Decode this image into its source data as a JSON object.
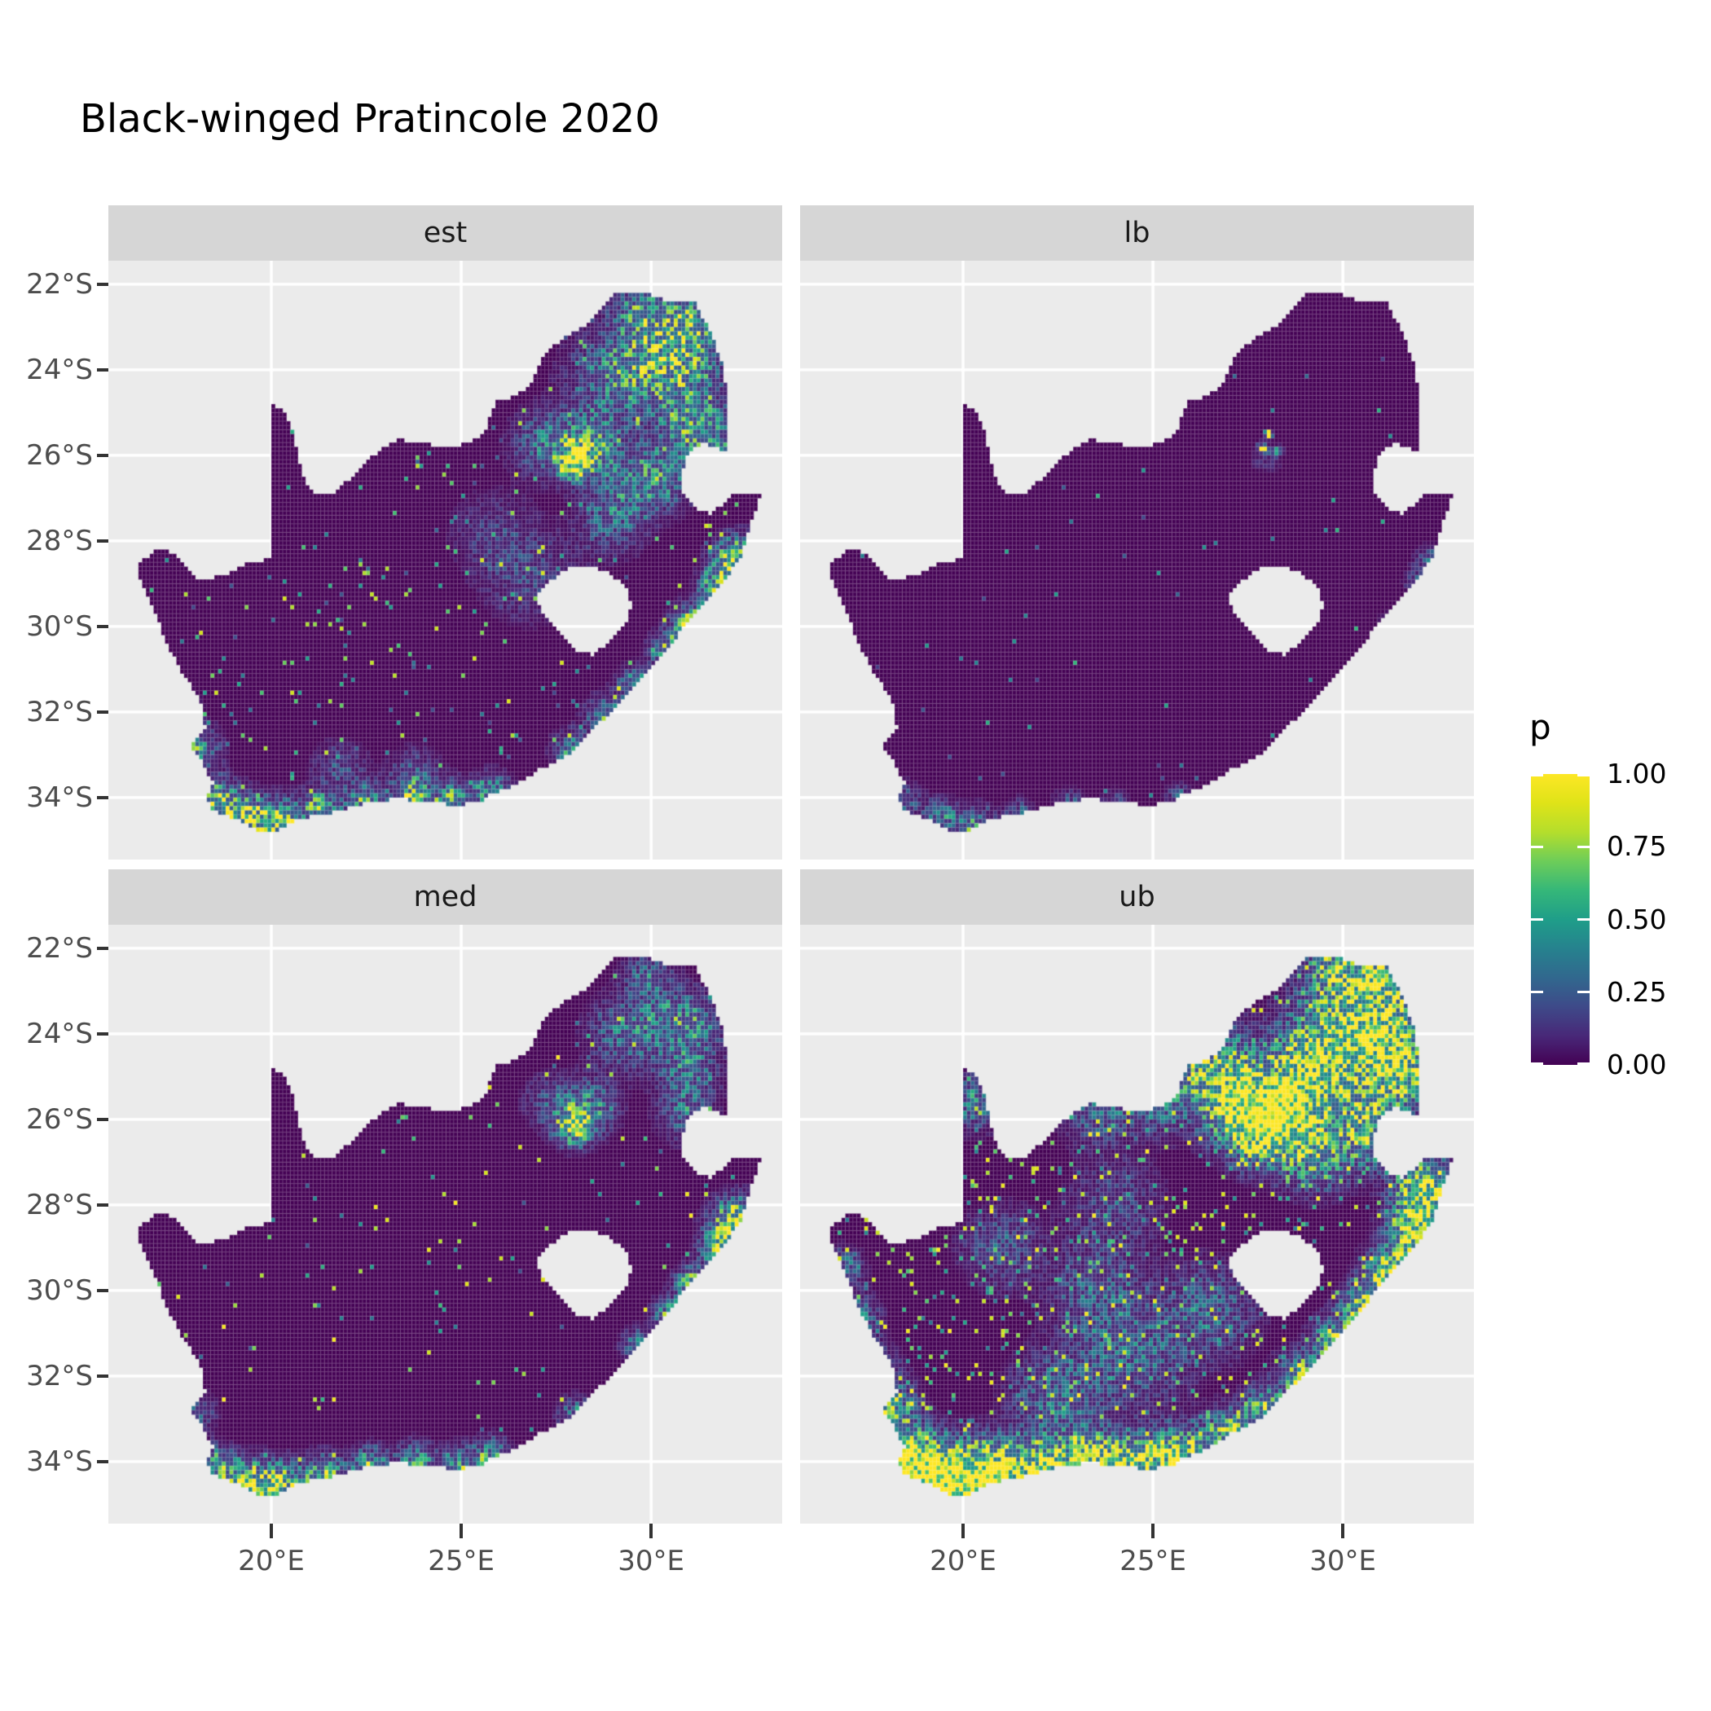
{
  "title": "Black-winged Pratincole 2020",
  "legend": {
    "title": "p",
    "breaks": [
      {
        "value": 1.0,
        "label": "1.00"
      },
      {
        "value": 0.75,
        "label": "0.75"
      },
      {
        "value": 0.5,
        "label": "0.50"
      },
      {
        "value": 0.25,
        "label": "0.25"
      },
      {
        "value": 0.0,
        "label": "0.00"
      }
    ]
  },
  "axes": {
    "x": {
      "ticks": [
        {
          "value": 20,
          "label": "20°E"
        },
        {
          "value": 25,
          "label": "25°E"
        },
        {
          "value": 30,
          "label": "30°E"
        }
      ]
    },
    "y": {
      "ticks": [
        {
          "value": -22,
          "label": "22°S"
        },
        {
          "value": -24,
          "label": "24°S"
        },
        {
          "value": -26,
          "label": "26°S"
        },
        {
          "value": -28,
          "label": "28°S"
        },
        {
          "value": -30,
          "label": "30°S"
        },
        {
          "value": -32,
          "label": "32°S"
        },
        {
          "value": -34,
          "label": "34°S"
        }
      ]
    }
  },
  "colors": {
    "background": "#ffffff",
    "panel_bg": "#ebebeb",
    "strip_bg": "#d6d6d6",
    "gridline": "#ffffff",
    "tick_mark": "#333333",
    "axis_text": "#4d4d4d",
    "strip_text": "#1a1a1a",
    "title_text": "#000000",
    "raster_base": "#440154",
    "raster_top": "#fde725"
  },
  "chart_data": {
    "type": "heatmap",
    "subtype": "faceted geographic raster (occurrence probability over South Africa pentad grid)",
    "title": "Black-winged Pratincole 2020",
    "facet_labels": [
      "est",
      "lb",
      "med",
      "ub"
    ],
    "legend_title": "p",
    "legend_breaks": [
      0,
      0.25,
      0.5,
      0.75,
      1
    ],
    "x_tick_labels": [
      "20°E",
      "25°E",
      "30°E"
    ],
    "y_tick_labels": [
      "22°S",
      "24°S",
      "26°S",
      "28°S",
      "30°S",
      "32°S",
      "34°S"
    ],
    "lon_range": [
      15.71,
      33.45
    ],
    "lat_range_south": [
      21.45,
      35.45
    ],
    "cell_size_deg": 0.1,
    "grid": {
      "lon0": 16.3,
      "lat0": 22.0,
      "cols": 168,
      "rows": 130
    },
    "viridis_stops": [
      [
        0.0,
        "#440154"
      ],
      [
        0.1,
        "#482878"
      ],
      [
        0.2,
        "#3e4a89"
      ],
      [
        0.3,
        "#31688e"
      ],
      [
        0.4,
        "#26828e"
      ],
      [
        0.5,
        "#1f9e89"
      ],
      [
        0.6,
        "#35b779"
      ],
      [
        0.7,
        "#6dcd59"
      ],
      [
        0.8,
        "#b4de2c"
      ],
      [
        0.9,
        "#dfe318"
      ],
      [
        1.0,
        "#fde725"
      ]
    ],
    "south_africa_outline": [
      [
        16.45,
        -28.6
      ],
      [
        16.95,
        -28.2
      ],
      [
        17.35,
        -28.25
      ],
      [
        17.65,
        -28.52
      ],
      [
        18.05,
        -28.87
      ],
      [
        18.75,
        -28.84
      ],
      [
        19.35,
        -28.52
      ],
      [
        19.99,
        -28.42
      ],
      [
        19.99,
        -24.77
      ],
      [
        20.38,
        -25.03
      ],
      [
        20.6,
        -25.45
      ],
      [
        20.68,
        -26.0
      ],
      [
        20.9,
        -26.6
      ],
      [
        21.15,
        -26.87
      ],
      [
        21.7,
        -26.85
      ],
      [
        22.25,
        -26.38
      ],
      [
        22.7,
        -26.0
      ],
      [
        23.3,
        -25.62
      ],
      [
        24.0,
        -25.73
      ],
      [
        24.75,
        -25.82
      ],
      [
        25.35,
        -25.62
      ],
      [
        25.62,
        -25.48
      ],
      [
        25.9,
        -24.75
      ],
      [
        26.45,
        -24.62
      ],
      [
        26.9,
        -24.25
      ],
      [
        27.2,
        -23.62
      ],
      [
        27.75,
        -23.22
      ],
      [
        28.35,
        -22.95
      ],
      [
        29.05,
        -22.22
      ],
      [
        29.7,
        -22.15
      ],
      [
        30.35,
        -22.35
      ],
      [
        31.1,
        -22.35
      ],
      [
        31.55,
        -23.1
      ],
      [
        31.9,
        -23.95
      ],
      [
        32.0,
        -24.7
      ],
      [
        31.95,
        -25.3
      ],
      [
        32.05,
        -25.65
      ],
      [
        31.95,
        -25.9
      ],
      [
        31.35,
        -25.72
      ],
      [
        30.98,
        -25.95
      ],
      [
        30.8,
        -26.4
      ],
      [
        30.82,
        -26.85
      ],
      [
        31.1,
        -27.2
      ],
      [
        31.55,
        -27.37
      ],
      [
        31.97,
        -27.1
      ],
      [
        32.13,
        -26.85
      ],
      [
        32.89,
        -26.85
      ],
      [
        32.58,
        -27.75
      ],
      [
        32.38,
        -28.32
      ],
      [
        32.0,
        -28.85
      ],
      [
        31.4,
        -29.45
      ],
      [
        30.75,
        -30.15
      ],
      [
        30.1,
        -30.85
      ],
      [
        29.45,
        -31.55
      ],
      [
        28.65,
        -32.25
      ],
      [
        27.9,
        -32.95
      ],
      [
        27.1,
        -33.32
      ],
      [
        26.4,
        -33.72
      ],
      [
        25.68,
        -33.95
      ],
      [
        25.62,
        -34.08
      ],
      [
        24.85,
        -34.18
      ],
      [
        23.95,
        -34.08
      ],
      [
        23.25,
        -34.02
      ],
      [
        22.4,
        -34.15
      ],
      [
        21.5,
        -34.38
      ],
      [
        20.75,
        -34.48
      ],
      [
        20.0,
        -34.82
      ],
      [
        19.6,
        -34.78
      ],
      [
        19.3,
        -34.58
      ],
      [
        18.85,
        -34.42
      ],
      [
        18.45,
        -34.32
      ],
      [
        18.3,
        -34.02
      ],
      [
        18.48,
        -33.68
      ],
      [
        18.18,
        -33.18
      ],
      [
        17.88,
        -32.75
      ],
      [
        18.28,
        -32.42
      ],
      [
        18.15,
        -31.75
      ],
      [
        17.6,
        -31.0
      ],
      [
        17.22,
        -30.32
      ],
      [
        16.9,
        -29.6
      ],
      [
        16.58,
        -28.98
      ]
    ],
    "lesotho_hole": [
      [
        26.98,
        -29.28
      ],
      [
        27.35,
        -28.92
      ],
      [
        27.78,
        -28.65
      ],
      [
        28.4,
        -28.6
      ],
      [
        28.92,
        -28.76
      ],
      [
        29.32,
        -29.06
      ],
      [
        29.48,
        -29.46
      ],
      [
        29.33,
        -29.92
      ],
      [
        28.95,
        -30.32
      ],
      [
        28.45,
        -30.66
      ],
      [
        28.05,
        -30.57
      ],
      [
        27.7,
        -30.3
      ],
      [
        27.36,
        -29.86
      ],
      [
        27.06,
        -29.57
      ]
    ],
    "facets": [
      {
        "label": "est",
        "seed": 11,
        "speckle": {
          "prob": 0.025,
          "min": 0.15,
          "max": 0.9
        },
        "hotspots": [
          [
            28.0,
            -26.15,
            0.25,
            1.35
          ],
          [
            28.4,
            -25.72,
            0.45,
            0.55
          ],
          [
            27.25,
            -25.72,
            0.5,
            0.35
          ],
          [
            29.1,
            -24.2,
            0.7,
            0.4
          ],
          [
            30.2,
            -23.6,
            0.65,
            0.45
          ],
          [
            31.2,
            -23.55,
            0.55,
            0.4
          ],
          [
            29.8,
            -22.6,
            0.45,
            0.45
          ],
          [
            31.0,
            -22.75,
            0.4,
            0.45
          ],
          [
            30.9,
            -24.9,
            0.55,
            0.45
          ],
          [
            31.4,
            -25.6,
            0.45,
            0.4
          ],
          [
            29.5,
            -26.7,
            0.55,
            0.35
          ],
          [
            30.4,
            -26.4,
            0.5,
            0.35
          ],
          [
            28.9,
            -27.6,
            0.5,
            0.25
          ],
          [
            32.3,
            -28.45,
            0.35,
            0.95
          ],
          [
            31.85,
            -29.1,
            0.3,
            0.85
          ],
          [
            31.1,
            -29.95,
            0.3,
            0.8
          ],
          [
            30.5,
            -30.6,
            0.28,
            0.7
          ],
          [
            29.6,
            -31.4,
            0.28,
            0.55
          ],
          [
            28.8,
            -32.1,
            0.28,
            0.5
          ],
          [
            27.95,
            -32.9,
            0.28,
            0.5
          ],
          [
            25.8,
            -33.9,
            0.28,
            0.65
          ],
          [
            24.8,
            -34.1,
            0.28,
            0.65
          ],
          [
            23.7,
            -34.0,
            0.28,
            0.6
          ],
          [
            22.5,
            -34.1,
            0.28,
            0.6
          ],
          [
            21.3,
            -34.3,
            0.3,
            0.7
          ],
          [
            20.2,
            -34.6,
            0.33,
            0.95
          ],
          [
            19.3,
            -34.45,
            0.33,
            0.9
          ],
          [
            18.5,
            -34.1,
            0.33,
            0.8
          ],
          [
            18.0,
            -32.9,
            0.35,
            0.5
          ],
          [
            17.6,
            -31.9,
            0.28,
            0.3
          ],
          [
            26.8,
            -28.8,
            0.7,
            0.18
          ],
          [
            25.8,
            -27.8,
            0.6,
            0.15
          ],
          [
            23.8,
            -33.5,
            0.4,
            0.25
          ],
          [
            21.8,
            -33.3,
            0.4,
            0.2
          ]
        ]
      },
      {
        "label": "lb",
        "seed": 22,
        "speckle": {
          "prob": 0.005,
          "min": 0.15,
          "max": 0.6
        },
        "hotspots": [
          [
            28.05,
            -25.5,
            0.06,
            1.2
          ],
          [
            28.3,
            -25.9,
            0.06,
            1.1
          ],
          [
            27.9,
            -25.85,
            0.08,
            0.7
          ],
          [
            28.0,
            -26.05,
            0.22,
            0.15
          ],
          [
            32.3,
            -28.45,
            0.22,
            0.3
          ],
          [
            31.95,
            -28.95,
            0.18,
            0.25
          ],
          [
            31.2,
            -29.9,
            0.15,
            0.2
          ],
          [
            20.3,
            -34.7,
            0.3,
            0.5
          ],
          [
            19.4,
            -34.5,
            0.28,
            0.45
          ],
          [
            21.5,
            -34.4,
            0.22,
            0.3
          ],
          [
            22.8,
            -34.15,
            0.22,
            0.28
          ],
          [
            24.0,
            -34.12,
            0.2,
            0.22
          ],
          [
            25.7,
            -34.0,
            0.2,
            0.28
          ],
          [
            18.45,
            -34.05,
            0.25,
            0.3
          ]
        ]
      },
      {
        "label": "med",
        "seed": 33,
        "speckle": {
          "prob": 0.014,
          "min": 0.2,
          "max": 1.0
        },
        "hotspots": [
          [
            28.0,
            -26.15,
            0.28,
            1.05
          ],
          [
            28.4,
            -25.7,
            0.4,
            0.4
          ],
          [
            27.4,
            -25.6,
            0.4,
            0.25
          ],
          [
            29.3,
            -24.0,
            0.55,
            0.3
          ],
          [
            30.4,
            -23.7,
            0.55,
            0.32
          ],
          [
            31.2,
            -23.8,
            0.45,
            0.3
          ],
          [
            31.0,
            -24.9,
            0.45,
            0.35
          ],
          [
            30.9,
            -25.9,
            0.4,
            0.3
          ],
          [
            29.9,
            -22.6,
            0.35,
            0.3
          ],
          [
            32.3,
            -28.45,
            0.38,
            1.05
          ],
          [
            31.9,
            -29.0,
            0.3,
            0.85
          ],
          [
            31.15,
            -29.9,
            0.28,
            0.75
          ],
          [
            30.5,
            -30.6,
            0.25,
            0.6
          ],
          [
            29.7,
            -31.3,
            0.25,
            0.5
          ],
          [
            28.0,
            -32.9,
            0.25,
            0.4
          ],
          [
            25.8,
            -33.92,
            0.28,
            0.62
          ],
          [
            24.9,
            -34.1,
            0.28,
            0.6
          ],
          [
            23.8,
            -34.02,
            0.28,
            0.62
          ],
          [
            22.6,
            -34.12,
            0.28,
            0.65
          ],
          [
            21.4,
            -34.32,
            0.3,
            0.72
          ],
          [
            20.2,
            -34.6,
            0.36,
            1.0
          ],
          [
            19.3,
            -34.45,
            0.33,
            0.8
          ],
          [
            18.5,
            -34.12,
            0.3,
            0.6
          ],
          [
            18.0,
            -32.85,
            0.28,
            0.35
          ]
        ]
      },
      {
        "label": "ub",
        "seed": 44,
        "speckle": {
          "prob": 0.075,
          "min": 0.3,
          "max": 1.0
        },
        "hotspots": [
          [
            28.0,
            -26.1,
            0.55,
            1.7
          ],
          [
            27.2,
            -25.5,
            0.6,
            0.85
          ],
          [
            28.9,
            -25.3,
            0.65,
            0.95
          ],
          [
            29.8,
            -24.3,
            0.75,
            0.85
          ],
          [
            31.0,
            -23.6,
            0.75,
            0.85
          ],
          [
            31.5,
            -24.8,
            0.55,
            0.85
          ],
          [
            30.8,
            -26.2,
            0.55,
            0.75
          ],
          [
            29.3,
            -26.8,
            0.55,
            0.55
          ],
          [
            26.5,
            -24.7,
            0.65,
            0.55
          ],
          [
            25.0,
            -25.4,
            0.55,
            0.45
          ],
          [
            29.9,
            -22.5,
            0.5,
            0.7
          ],
          [
            31.2,
            -22.6,
            0.4,
            0.6
          ],
          [
            32.2,
            -27.6,
            0.45,
            1.1
          ],
          [
            32.0,
            -28.6,
            0.42,
            1.25
          ],
          [
            31.3,
            -29.6,
            0.38,
            1.05
          ],
          [
            30.6,
            -30.4,
            0.35,
            0.95
          ],
          [
            29.8,
            -31.2,
            0.33,
            0.85
          ],
          [
            28.9,
            -32.0,
            0.33,
            0.85
          ],
          [
            28.0,
            -32.8,
            0.33,
            0.85
          ],
          [
            27.0,
            -33.3,
            0.33,
            0.85
          ],
          [
            25.7,
            -33.9,
            0.42,
            1.05
          ],
          [
            24.6,
            -34.05,
            0.42,
            1.05
          ],
          [
            23.4,
            -34.0,
            0.42,
            1.05
          ],
          [
            22.2,
            -34.15,
            0.42,
            1.05
          ],
          [
            21.0,
            -34.3,
            0.48,
            1.25
          ],
          [
            19.9,
            -34.5,
            0.55,
            1.5
          ],
          [
            19.0,
            -34.25,
            0.48,
            1.25
          ],
          [
            18.3,
            -33.8,
            0.42,
            1.0
          ],
          [
            17.9,
            -32.8,
            0.45,
            0.8
          ],
          [
            17.5,
            -31.8,
            0.38,
            0.5
          ],
          [
            17.2,
            -30.6,
            0.33,
            0.4
          ],
          [
            16.8,
            -29.5,
            0.3,
            0.4
          ],
          [
            22.5,
            -32.5,
            0.7,
            0.35
          ],
          [
            24.5,
            -31.5,
            0.8,
            0.3
          ],
          [
            26.5,
            -30.5,
            0.7,
            0.3
          ],
          [
            23.5,
            -30.0,
            0.7,
            0.25
          ],
          [
            21.0,
            -29.0,
            0.6,
            0.25
          ],
          [
            24.0,
            -28.0,
            0.7,
            0.2
          ],
          [
            20.3,
            -25.6,
            0.4,
            0.4
          ],
          [
            23.5,
            -25.8,
            0.5,
            0.3
          ]
        ]
      }
    ]
  }
}
